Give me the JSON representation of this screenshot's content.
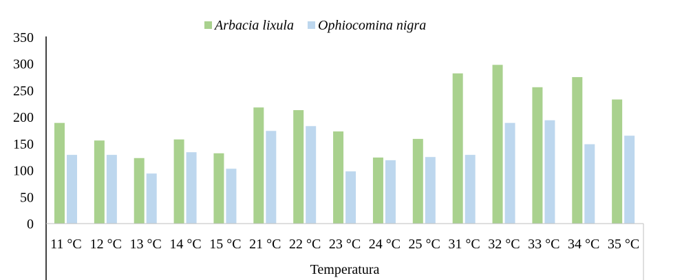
{
  "chart_data": {
    "type": "bar",
    "title": "",
    "xlabel": "Temperatura",
    "ylabel": "",
    "ylim": [
      0,
      350
    ],
    "yticks": [
      0,
      50,
      100,
      150,
      200,
      250,
      300,
      350
    ],
    "grid": false,
    "legend_position": "top",
    "categories": [
      "11 °C",
      "12 °C",
      "13 °C",
      "14 °C",
      "15 °C",
      "21 °C",
      "22 °C",
      "23 °C",
      "24 °C",
      "25 °C",
      "31 °C",
      "32 °C",
      "33 °C",
      "34 °C",
      "35 °C"
    ],
    "series": [
      {
        "name": "Arbacia lixula",
        "color": "#A9D18E",
        "values": [
          189,
          156,
          123,
          158,
          132,
          218,
          213,
          173,
          124,
          159,
          282,
          298,
          256,
          275,
          233
        ]
      },
      {
        "name": "Ophiocomina nigra",
        "color": "#BDD7EE",
        "values": [
          129,
          129,
          94,
          134,
          103,
          174,
          183,
          98,
          119,
          125,
          129,
          189,
          194,
          149,
          165
        ]
      }
    ]
  }
}
